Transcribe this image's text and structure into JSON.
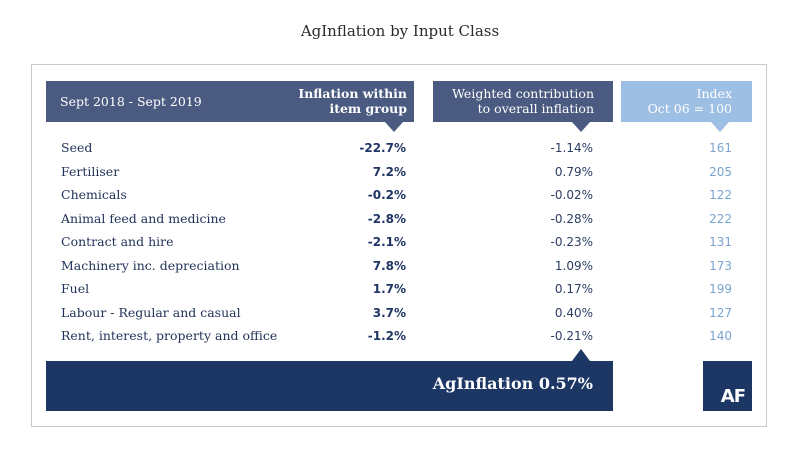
{
  "chart_data": {
    "type": "table",
    "title": "AgInflation by Input Class",
    "columns": {
      "period": "Sept 2018 - Sept 2019",
      "inflation_line1": "Inflation within",
      "inflation_line2": "item group",
      "contrib_line1": "Weighted contribution",
      "contrib_line2": "to overall inflation",
      "index_line1": "Index",
      "index_line2": "Oct 06 = 100"
    },
    "rows": [
      {
        "label": "Seed",
        "inflation": "-22.7%",
        "contribution": "-1.14%",
        "index": "161"
      },
      {
        "label": "Fertiliser",
        "inflation": "7.2%",
        "contribution": "0.79%",
        "index": "205"
      },
      {
        "label": "Chemicals",
        "inflation": "-0.2%",
        "contribution": "-0.02%",
        "index": "122"
      },
      {
        "label": "Animal feed and medicine",
        "inflation": "-2.8%",
        "contribution": "-0.28%",
        "index": "222"
      },
      {
        "label": "Contract and hire",
        "inflation": "-2.1%",
        "contribution": "-0.23%",
        "index": "131"
      },
      {
        "label": "Machinery inc. depreciation",
        "inflation": "7.8%",
        "contribution": "1.09%",
        "index": "173"
      },
      {
        "label": "Fuel",
        "inflation": "1.7%",
        "contribution": "0.17%",
        "index": "199"
      },
      {
        "label": "Labour - Regular and casual",
        "inflation": "3.7%",
        "contribution": "0.40%",
        "index": "127"
      },
      {
        "label": "Rent, interest, property and office",
        "inflation": "-1.2%",
        "contribution": "-0.21%",
        "index": "140"
      }
    ],
    "total_label": "AgInflation 0.57%",
    "logo_text": "AF"
  },
  "colors": {
    "header_navy": "#4a5a80",
    "header_light": "#9dbfe3",
    "footer_dark": "#1c3764",
    "index_text": "#7aa3d0"
  }
}
